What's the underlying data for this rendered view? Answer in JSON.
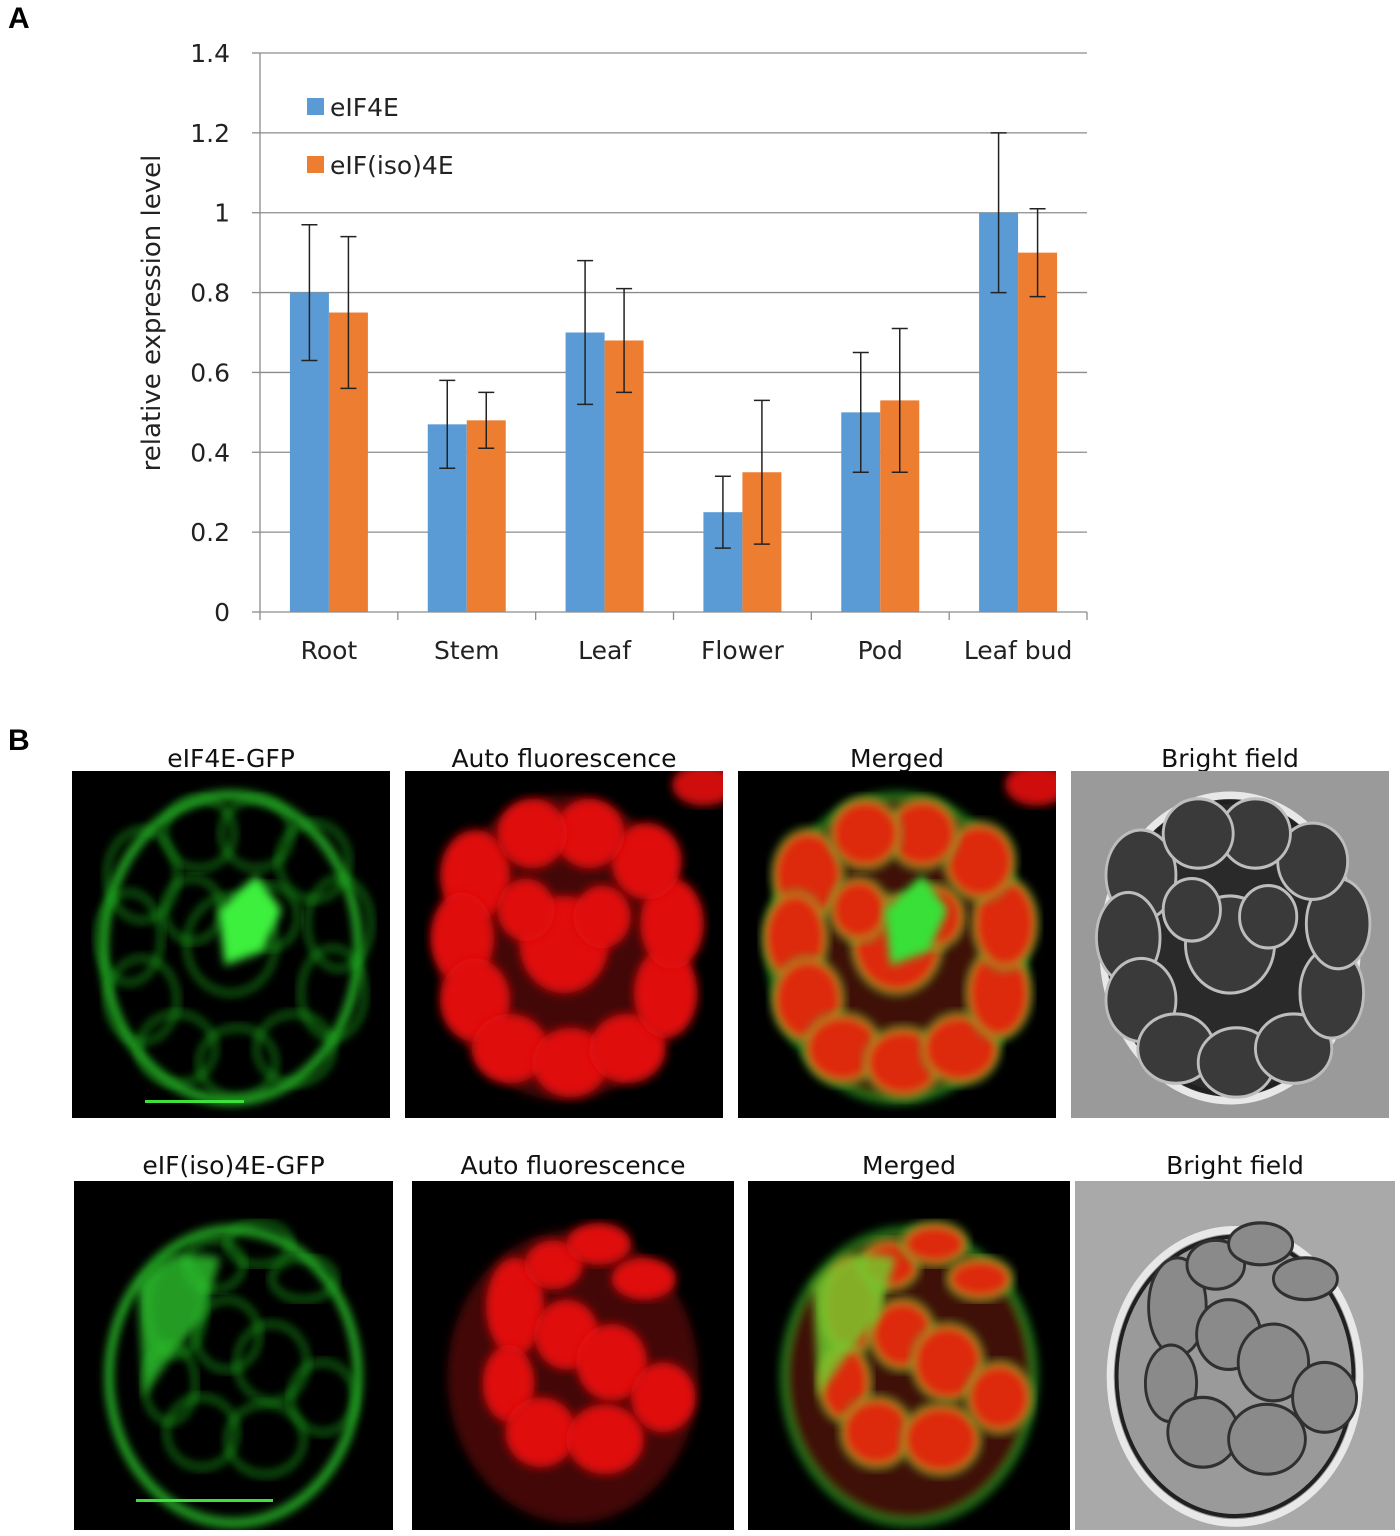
{
  "panels": {
    "a_label": "A",
    "b_label": "B"
  },
  "chart_data": {
    "type": "bar",
    "categories": [
      "Root",
      "Stem",
      "Leaf",
      "Flower",
      "Pod",
      "Leaf bud"
    ],
    "series": [
      {
        "name": "eIF4E",
        "color": "#5b9bd5",
        "values": [
          0.8,
          0.47,
          0.7,
          0.25,
          0.5,
          1.0
        ],
        "errors": [
          0.17,
          0.11,
          0.18,
          0.09,
          0.15,
          0.2
        ]
      },
      {
        "name": "eIF(iso)4E",
        "color": "#ed7d31",
        "values": [
          0.75,
          0.48,
          0.68,
          0.35,
          0.53,
          0.9
        ],
        "errors": [
          0.19,
          0.07,
          0.13,
          0.18,
          0.18,
          0.11
        ]
      }
    ],
    "ylabel": "relative expression level",
    "ylim": [
      0,
      1.4
    ],
    "yticks": [
      0,
      0.2,
      0.4,
      0.6,
      0.8,
      1,
      1.2,
      1.4
    ],
    "ytick_labels": [
      "0",
      "0.2",
      "0.4",
      "0.6",
      "0.8",
      "1",
      "1.2",
      "1.4"
    ],
    "grid": true,
    "legend": "top-left"
  },
  "micrographs": {
    "row1": [
      {
        "title": "eIF4E-GFP",
        "channel": "green",
        "scale_bar": true
      },
      {
        "title": "Auto fluorescence",
        "channel": "red",
        "scale_bar": false
      },
      {
        "title": "Merged",
        "channel": "merged",
        "scale_bar": false
      },
      {
        "title": "Bright field",
        "channel": "bright",
        "scale_bar": false
      }
    ],
    "row2": [
      {
        "title": "eIF(iso)4E-GFP",
        "channel": "green",
        "scale_bar": true
      },
      {
        "title": "Auto fluorescence",
        "channel": "red",
        "scale_bar": false
      },
      {
        "title": "Merged",
        "channel": "merged",
        "scale_bar": false
      },
      {
        "title": "Bright field",
        "channel": "bright",
        "scale_bar": false
      }
    ]
  }
}
